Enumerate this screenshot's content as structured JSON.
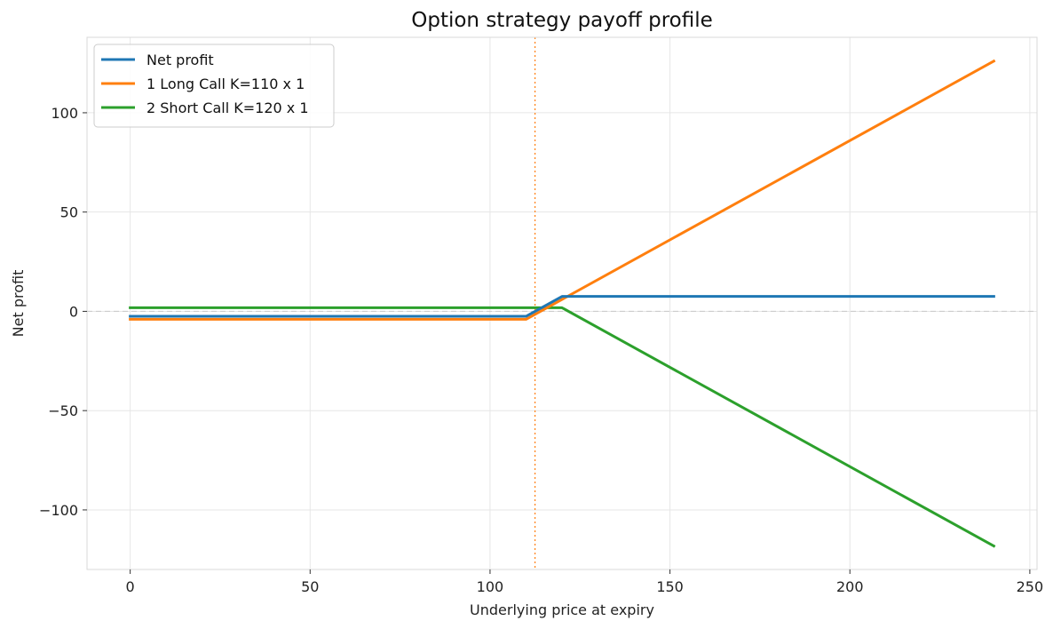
{
  "chart_data": {
    "type": "line",
    "title": "Option strategy payoff profile",
    "xlabel": "Underlying price at expiry",
    "ylabel": "Net profit",
    "xlim": [
      -12,
      252
    ],
    "ylim": [
      -130,
      138
    ],
    "x_ticks": [
      0,
      50,
      100,
      150,
      200,
      250
    ],
    "x_tick_labels": [
      "0",
      "50",
      "100",
      "150",
      "200",
      "250"
    ],
    "y_ticks": [
      -100,
      -50,
      0,
      50,
      100
    ],
    "y_tick_labels": [
      "−100",
      "−50",
      "0",
      "50",
      "100"
    ],
    "grid": true,
    "legend_position": "top-left",
    "series": [
      {
        "name": "Net profit",
        "color": "#1f77b4",
        "x": [
          0,
          110,
          120,
          240
        ],
        "y": [
          -2.5,
          -2.5,
          7.5,
          7.5
        ]
      },
      {
        "name": "1 Long Call K=110 x 1",
        "color": "#ff7f0e",
        "x": [
          0,
          110,
          240
        ],
        "y": [
          -4,
          -4,
          126
        ]
      },
      {
        "name": "2 Short Call K=120 x 1",
        "color": "#2ca02c",
        "x": [
          0,
          120,
          240
        ],
        "y": [
          1.8,
          1.8,
          -118.2
        ]
      }
    ],
    "reference_lines": [
      {
        "orientation": "vertical",
        "value": 112.5,
        "style": "dotted",
        "color": "#ff7f0e"
      },
      {
        "orientation": "horizontal",
        "value": 0,
        "style": "dashed",
        "color": "#cccccc"
      }
    ]
  }
}
